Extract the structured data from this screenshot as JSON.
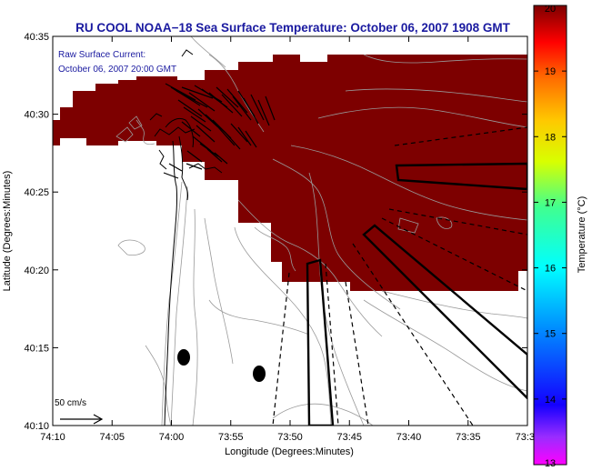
{
  "title": "RU COOL  NOAA−18  Sea Surface Temperature:  October 06, 2007 1908 GMT",
  "current_label": {
    "line1": "Raw Surface Current:",
    "line2": "October 06, 2007 20:00 GMT"
  },
  "scale_label": "50 cm/s",
  "xlabel": "Longitude (Degrees:Minutes)",
  "ylabel": "Latitude (Degrees:Minutes)",
  "x_ticks": [
    "74:10",
    "74:05",
    "74:00",
    "73:55",
    "73:50",
    "73:45",
    "73:40",
    "73:35",
    "73:3"
  ],
  "y_ticks": [
    "40:35",
    "40:30",
    "40:25",
    "40:20",
    "40:15",
    "40:10"
  ],
  "colorbar": {
    "label": "Temperature (°C)",
    "min": 13,
    "max": 20,
    "ticks": [
      "20",
      "19",
      "18",
      "17",
      "16",
      "15",
      "14",
      "13"
    ]
  },
  "colors": {
    "sst_fill": "#7d0000",
    "title_text": "#1a1aa0",
    "contour": "#9a9a9a"
  }
}
